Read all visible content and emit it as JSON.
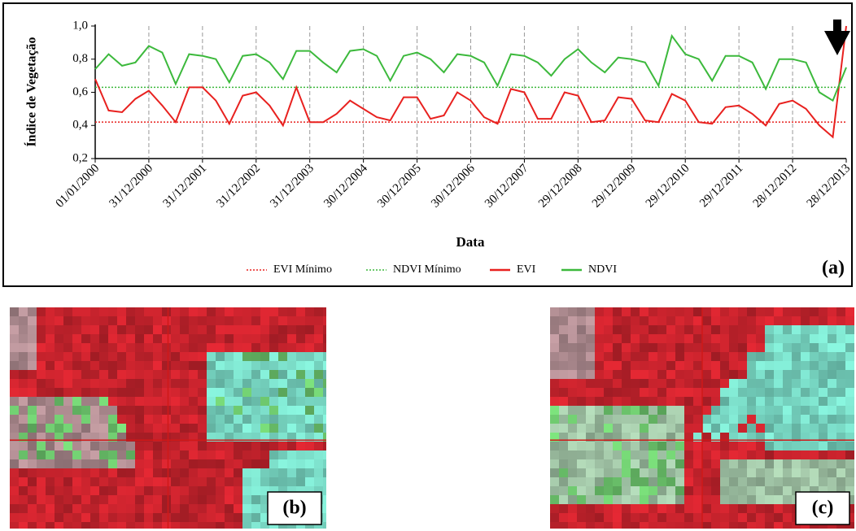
{
  "chart_data": {
    "type": "line",
    "y_label": "Índice de Vegetação",
    "x_label": "Data",
    "xlim": [
      0,
      14
    ],
    "ylim": [
      0.2,
      1.0
    ],
    "yticks": [
      {
        "value": 0.2,
        "label": "0,2"
      },
      {
        "value": 0.4,
        "label": "0,4"
      },
      {
        "value": 0.6,
        "label": "0,6"
      },
      {
        "value": 0.8,
        "label": "0,8"
      },
      {
        "value": 1.0,
        "label": "1,0"
      }
    ],
    "xticks": [
      {
        "value": 0,
        "label": "01/01/2000"
      },
      {
        "value": 1,
        "label": "31/12/2000"
      },
      {
        "value": 2,
        "label": "31/12/2001"
      },
      {
        "value": 3,
        "label": "31/12/2002"
      },
      {
        "value": 4,
        "label": "31/12/2003"
      },
      {
        "value": 5,
        "label": "30/12/2004"
      },
      {
        "value": 6,
        "label": "30/12/2005"
      },
      {
        "value": 7,
        "label": "30/12/2006"
      },
      {
        "value": 8,
        "label": "30/12/2007"
      },
      {
        "value": 9,
        "label": "29/12/2008"
      },
      {
        "value": 10,
        "label": "29/12/2009"
      },
      {
        "value": 11,
        "label": "29/12/2010"
      },
      {
        "value": 12,
        "label": "29/12/2011"
      },
      {
        "value": 13,
        "label": "28/12/2012"
      },
      {
        "value": 14,
        "label": "28/12/2013"
      }
    ],
    "grid": "x",
    "x": [
      0,
      0.25,
      0.5,
      0.75,
      1,
      1.25,
      1.5,
      1.75,
      2,
      2.25,
      2.5,
      2.75,
      3,
      3.25,
      3.5,
      3.75,
      4,
      4.25,
      4.5,
      4.75,
      5,
      5.25,
      5.5,
      5.75,
      6,
      6.25,
      6.5,
      6.75,
      7,
      7.25,
      7.5,
      7.75,
      8,
      8.25,
      8.5,
      8.75,
      9,
      9.25,
      9.5,
      9.75,
      10,
      10.25,
      10.5,
      10.75,
      11,
      11.25,
      11.5,
      11.75,
      12,
      12.25,
      12.5,
      12.75,
      13,
      13.25,
      13.5,
      13.75,
      14
    ],
    "series": [
      {
        "name": "EVI Mínimo",
        "color": "#e8211f",
        "value": 0.42,
        "style": "dotted"
      },
      {
        "name": "NDVI Mínimo",
        "color": "#3cb93c",
        "value": 0.63,
        "style": "dotted"
      },
      {
        "name": "EVI",
        "color": "#e8211f",
        "style": "solid",
        "values": [
          0.68,
          0.49,
          0.48,
          0.56,
          0.61,
          0.52,
          0.42,
          0.63,
          0.63,
          0.55,
          0.41,
          0.58,
          0.6,
          0.52,
          0.4,
          0.63,
          0.42,
          0.42,
          0.47,
          0.55,
          0.5,
          0.45,
          0.43,
          0.57,
          0.57,
          0.44,
          0.46,
          0.6,
          0.55,
          0.45,
          0.41,
          0.62,
          0.6,
          0.44,
          0.44,
          0.6,
          0.58,
          0.42,
          0.43,
          0.57,
          0.56,
          0.43,
          0.42,
          0.59,
          0.55,
          0.42,
          0.41,
          0.51,
          0.52,
          0.47,
          0.4,
          0.53,
          0.55,
          0.5,
          0.4,
          0.33,
          1.0
        ]
      },
      {
        "name": "NDVI",
        "color": "#3cb93c",
        "style": "solid",
        "values": [
          0.74,
          0.83,
          0.76,
          0.78,
          0.88,
          0.84,
          0.65,
          0.83,
          0.82,
          0.8,
          0.66,
          0.82,
          0.83,
          0.78,
          0.68,
          0.85,
          0.85,
          0.78,
          0.72,
          0.85,
          0.86,
          0.82,
          0.67,
          0.82,
          0.84,
          0.8,
          0.72,
          0.83,
          0.82,
          0.78,
          0.64,
          0.83,
          0.82,
          0.78,
          0.7,
          0.8,
          0.86,
          0.78,
          0.72,
          0.81,
          0.8,
          0.78,
          0.64,
          0.94,
          0.83,
          0.8,
          0.67,
          0.82,
          0.82,
          0.78,
          0.62,
          0.8,
          0.8,
          0.78,
          0.6,
          0.55,
          0.75
        ]
      }
    ]
  },
  "panel_labels": [
    "(a)",
    "(b)",
    "(c)"
  ]
}
